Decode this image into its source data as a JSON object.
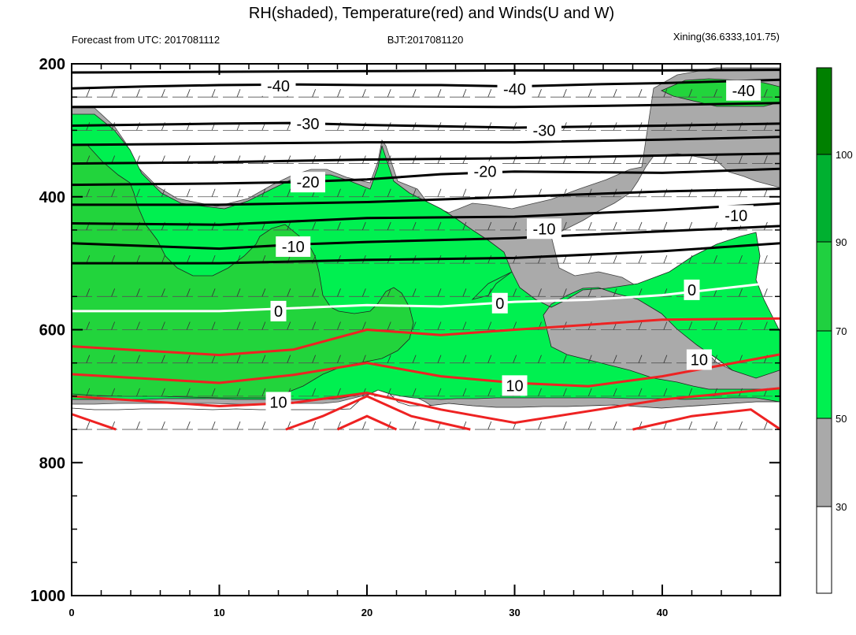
{
  "chart_data": {
    "type": "heatmap",
    "title": "RH(shaded), Temperature(red) and Winds(U and W)",
    "subtitle_left": "Forecast from UTC: 2017081112",
    "subtitle_center": "BJT:2017081120",
    "subtitle_right": "Xining(36.6333,101.75)",
    "xlabel": "",
    "ylabel": "",
    "x_ticks": [
      "0",
      "10",
      "20",
      "30",
      "40"
    ],
    "x_range": [
      0,
      48
    ],
    "y_ticks": [
      "200",
      "400",
      "600",
      "800",
      "1000"
    ],
    "y_range": [
      200,
      1000
    ],
    "y_scale": "inverted pressure",
    "grid": false,
    "legend": {
      "position": "right",
      "type": "colorbar",
      "labels": [
        "30",
        "50",
        "70",
        "90",
        "100"
      ],
      "colors": [
        "#ffffff",
        "#a9a9a9",
        "#00f050",
        "#20d040",
        "#00b030",
        "#008000"
      ]
    },
    "shading_colors": {
      "rh_30_50": "#aaaaaa",
      "rh_50_70": "#00f050",
      "rh_70_90": "#22d43c"
    },
    "contours": [
      {
        "name": "temp-minus-40-upper",
        "color": "#000000",
        "label": "-40",
        "points": [
          [
            0,
            213
          ],
          [
            10,
            212
          ],
          [
            20,
            211
          ],
          [
            30,
            210
          ],
          [
            40,
            210
          ],
          [
            48,
            209
          ]
        ]
      },
      {
        "name": "temp-minus-40",
        "color": "#000000",
        "label": "-40",
        "points": [
          [
            0,
            237
          ],
          [
            5,
            234
          ],
          [
            10,
            232
          ],
          [
            15,
            231
          ],
          [
            20,
            232
          ],
          [
            25,
            232
          ],
          [
            30,
            234
          ],
          [
            35,
            231
          ],
          [
            40,
            229
          ],
          [
            45,
            226
          ],
          [
            48,
            224
          ]
        ]
      },
      {
        "name": "temp-minus-30-upper",
        "color": "#000000",
        "label": "",
        "points": [
          [
            0,
            265
          ],
          [
            10,
            264
          ],
          [
            20,
            264
          ],
          [
            30,
            265
          ],
          [
            40,
            262
          ],
          [
            48,
            259
          ]
        ]
      },
      {
        "name": "temp-minus-30",
        "color": "#000000",
        "label": "-30",
        "points": [
          [
            0,
            293
          ],
          [
            10,
            290
          ],
          [
            15,
            289
          ],
          [
            20,
            292
          ],
          [
            30,
            296
          ],
          [
            40,
            293
          ],
          [
            48,
            290
          ]
        ]
      },
      {
        "name": "temp-minus-30-lower",
        "color": "#000000",
        "label": "",
        "points": [
          [
            0,
            322
          ],
          [
            10,
            320
          ],
          [
            20,
            318
          ],
          [
            30,
            318
          ],
          [
            40,
            314
          ],
          [
            48,
            310
          ]
        ]
      },
      {
        "name": "temp-minus-20-upper",
        "color": "#000000",
        "label": "",
        "points": [
          [
            0,
            350
          ],
          [
            10,
            348
          ],
          [
            20,
            344
          ],
          [
            30,
            342
          ],
          [
            40,
            338
          ],
          [
            48,
            335
          ]
        ]
      },
      {
        "name": "temp-minus-20",
        "color": "#000000",
        "label": "-20",
        "points": [
          [
            0,
            382
          ],
          [
            10,
            380
          ],
          [
            15,
            378
          ],
          [
            20,
            374
          ],
          [
            25,
            366
          ],
          [
            30,
            362
          ],
          [
            40,
            364
          ],
          [
            48,
            358
          ]
        ]
      },
      {
        "name": "temp-minus-20-lower",
        "color": "#000000",
        "label": "",
        "points": [
          [
            0,
            412
          ],
          [
            10,
            412
          ],
          [
            20,
            408
          ],
          [
            25,
            404
          ],
          [
            30,
            400
          ],
          [
            40,
            392
          ],
          [
            48,
            388
          ]
        ]
      },
      {
        "name": "temp-minus-10-upper",
        "color": "#000000",
        "label": "-10",
        "points": [
          [
            0,
            440
          ],
          [
            10,
            442
          ],
          [
            20,
            432
          ],
          [
            30,
            430
          ],
          [
            40,
            420
          ],
          [
            48,
            410
          ]
        ]
      },
      {
        "name": "temp-minus-10",
        "color": "#000000",
        "label": "-10",
        "points": [
          [
            0,
            470
          ],
          [
            10,
            478
          ],
          [
            15,
            472
          ],
          [
            20,
            468
          ],
          [
            30,
            462
          ],
          [
            40,
            452
          ],
          [
            48,
            444
          ]
        ]
      },
      {
        "name": "temp-minus-10-lower",
        "color": "#000000",
        "label": "",
        "points": [
          [
            0,
            500
          ],
          [
            10,
            500
          ],
          [
            20,
            495
          ],
          [
            30,
            492
          ],
          [
            40,
            482
          ],
          [
            48,
            470
          ]
        ]
      },
      {
        "name": "temp-0",
        "color": "#ffffff",
        "label": "0",
        "points": [
          [
            0,
            572
          ],
          [
            10,
            572
          ],
          [
            20,
            563
          ],
          [
            25,
            565
          ],
          [
            30,
            558
          ],
          [
            35,
            555
          ],
          [
            40,
            548
          ],
          [
            48,
            528
          ]
        ]
      },
      {
        "name": "temp-10-upper",
        "color": "#ee2222",
        "label": "",
        "points": [
          [
            0,
            625
          ],
          [
            10,
            638
          ],
          [
            15,
            630
          ],
          [
            20,
            600
          ],
          [
            25,
            608
          ],
          [
            30,
            600
          ],
          [
            40,
            585
          ],
          [
            48,
            583
          ]
        ]
      },
      {
        "name": "temp-10",
        "color": "#ee2222",
        "label": "10",
        "points": [
          [
            0,
            667
          ],
          [
            10,
            680
          ],
          [
            15,
            668
          ],
          [
            20,
            650
          ],
          [
            25,
            670
          ],
          [
            30,
            680
          ],
          [
            35,
            685
          ],
          [
            40,
            670
          ],
          [
            48,
            637
          ]
        ]
      },
      {
        "name": "temp-15",
        "color": "#ee2222",
        "label": "10",
        "points": [
          [
            0,
            700
          ],
          [
            10,
            715
          ],
          [
            15,
            710
          ],
          [
            20,
            695
          ],
          [
            25,
            720
          ],
          [
            30,
            740
          ],
          [
            40,
            705
          ],
          [
            48,
            688
          ]
        ]
      },
      {
        "name": "temp-20-left",
        "color": "#ee2222",
        "label": "",
        "points": [
          [
            0,
            727
          ],
          [
            3,
            750
          ]
        ]
      },
      {
        "name": "temp-20-mid",
        "color": "#ee2222",
        "label": "",
        "points": [
          [
            14.5,
            750
          ],
          [
            17,
            730
          ],
          [
            20,
            700
          ],
          [
            23,
            730
          ],
          [
            27,
            750
          ]
        ]
      },
      {
        "name": "temp-20-mid-inner",
        "color": "#ee2222",
        "label": "",
        "points": [
          [
            18,
            750
          ],
          [
            20,
            730
          ],
          [
            22,
            750
          ]
        ]
      },
      {
        "name": "temp-20-right",
        "color": "#ee2222",
        "label": "",
        "points": [
          [
            38,
            750
          ],
          [
            42,
            730
          ],
          [
            46,
            720
          ],
          [
            48,
            750
          ]
        ]
      }
    ]
  },
  "contour_labels": [
    {
      "text": "-40",
      "x": 14,
      "y": 233
    },
    {
      "text": "-40",
      "x": 30,
      "y": 238
    },
    {
      "text": "-40",
      "x": 45.5,
      "y": 240
    },
    {
      "text": "-30",
      "x": 16,
      "y": 290
    },
    {
      "text": "-30",
      "x": 32,
      "y": 300
    },
    {
      "text": "-20",
      "x": 16,
      "y": 378
    },
    {
      "text": "-20",
      "x": 28,
      "y": 362
    },
    {
      "text": "-10",
      "x": 32,
      "y": 448
    },
    {
      "text": "-10",
      "x": 45,
      "y": 428
    },
    {
      "text": "-10",
      "x": 15,
      "y": 475
    },
    {
      "text": "0",
      "x": 14,
      "y": 572
    },
    {
      "text": "0",
      "x": 29,
      "y": 560
    },
    {
      "text": "0",
      "x": 42,
      "y": 540
    },
    {
      "text": "10",
      "x": 42.5,
      "y": 645
    },
    {
      "text": "10",
      "x": 30,
      "y": 684
    },
    {
      "text": "10",
      "x": 14,
      "y": 709
    }
  ]
}
